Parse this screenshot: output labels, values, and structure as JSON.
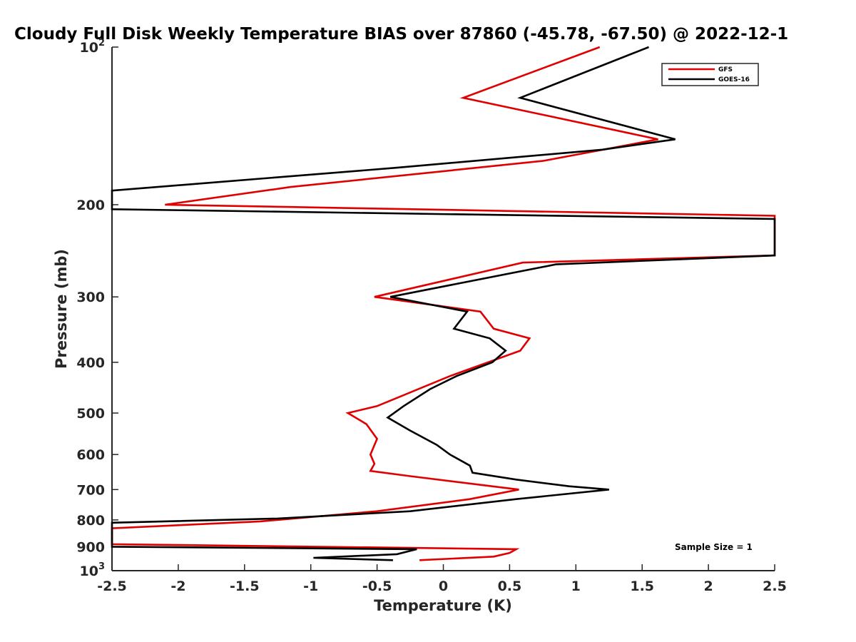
{
  "chart_data": {
    "type": "line",
    "title": "Cloudy Full Disk Weekly Temperature BIAS over 87860 (-45.78, -67.50) @ 2022-12-1",
    "xlabel": "Temperature (K)",
    "ylabel": "Pressure (mb)",
    "xlim": [
      -2.5,
      2.5
    ],
    "ylim": [
      100,
      1000
    ],
    "y_scale": "log",
    "y_reversed": true,
    "x_ticks": [
      "-2.5",
      "-2",
      "-1.5",
      "-1",
      "-0.5",
      "0",
      "0.5",
      "1",
      "1.5",
      "2",
      "2.5"
    ],
    "y_ticks": [
      {
        "value": 100,
        "base": "10",
        "exp": "2"
      },
      {
        "value": 200,
        "label": "200"
      },
      {
        "value": 300,
        "label": "300"
      },
      {
        "value": 400,
        "label": "400"
      },
      {
        "value": 500,
        "label": "500"
      },
      {
        "value": 600,
        "label": "600"
      },
      {
        "value": 700,
        "label": "700"
      },
      {
        "value": 800,
        "label": "800"
      },
      {
        "value": 900,
        "label": "900"
      },
      {
        "value": 1000,
        "base": "10",
        "exp": "3"
      }
    ],
    "legend_position": "top-right",
    "annotation": "Sample Size = 1",
    "series": [
      {
        "name": "GFS",
        "color": "#e00000",
        "points": [
          [
            1.18,
            100
          ],
          [
            0.15,
            125
          ],
          [
            1.62,
            150
          ],
          [
            0.75,
            165
          ],
          [
            -1.15,
            185
          ],
          [
            -2.1,
            200
          ],
          [
            2.5,
            210
          ],
          [
            2.5,
            250
          ],
          [
            0.6,
            258
          ],
          [
            -0.52,
            300
          ],
          [
            0.28,
            320
          ],
          [
            0.38,
            345
          ],
          [
            0.65,
            360
          ],
          [
            0.58,
            380
          ],
          [
            0.05,
            425
          ],
          [
            -0.5,
            485
          ],
          [
            -0.72,
            500
          ],
          [
            -0.58,
            525
          ],
          [
            -0.5,
            560
          ],
          [
            -0.55,
            600
          ],
          [
            -0.52,
            625
          ],
          [
            -0.55,
            645
          ],
          [
            -0.25,
            660
          ],
          [
            0.57,
            700
          ],
          [
            0.2,
            730
          ],
          [
            -0.5,
            770
          ],
          [
            -1.38,
            805
          ],
          [
            -2.5,
            830
          ],
          [
            -2.5,
            890
          ],
          [
            0.55,
            910
          ],
          [
            0.5,
            925
          ],
          [
            0.38,
            940
          ],
          [
            -0.18,
            955
          ]
        ]
      },
      {
        "name": "GOES-16",
        "color": "#000000",
        "points": [
          [
            1.55,
            100
          ],
          [
            0.58,
            125
          ],
          [
            1.75,
            150
          ],
          [
            1.2,
            157
          ],
          [
            -0.35,
            170
          ],
          [
            -2.5,
            188
          ],
          [
            -2.5,
            204
          ],
          [
            2.5,
            213
          ],
          [
            2.5,
            250
          ],
          [
            0.85,
            260
          ],
          [
            -0.4,
            300
          ],
          [
            0.18,
            320
          ],
          [
            0.08,
            345
          ],
          [
            0.35,
            360
          ],
          [
            0.47,
            380
          ],
          [
            0.37,
            400
          ],
          [
            0.1,
            425
          ],
          [
            -0.1,
            450
          ],
          [
            -0.3,
            485
          ],
          [
            -0.42,
            510
          ],
          [
            -0.25,
            540
          ],
          [
            -0.05,
            575
          ],
          [
            0.05,
            600
          ],
          [
            0.2,
            630
          ],
          [
            0.22,
            650
          ],
          [
            0.55,
            670
          ],
          [
            0.95,
            690
          ],
          [
            1.25,
            700
          ],
          [
            0.55,
            730
          ],
          [
            -0.25,
            770
          ],
          [
            -1.25,
            795
          ],
          [
            -2.5,
            810
          ],
          [
            -2.5,
            900
          ],
          [
            -0.2,
            910
          ],
          [
            -0.35,
            930
          ],
          [
            -0.98,
            945
          ],
          [
            -0.38,
            955
          ]
        ]
      }
    ]
  }
}
